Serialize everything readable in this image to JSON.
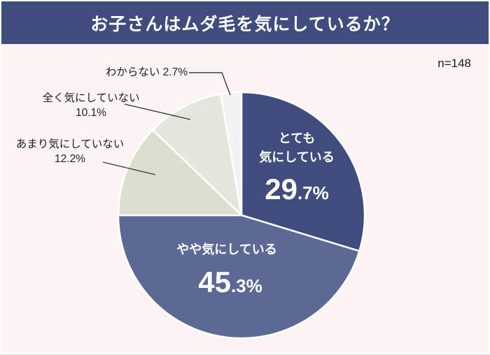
{
  "header": {
    "title": "お子さんはムダ毛を気にしているか？"
  },
  "sample_label": "n=148",
  "colors": {
    "header_bg": "#3e4d7e",
    "background": "#fbf4f2",
    "title_text": "#ffffff",
    "outside_label_text": "#1f1f1f",
    "inside_label_text": "#ffffff",
    "leader_line": "#3a3a3a"
  },
  "chart_data": {
    "type": "pie",
    "title": "お子さんはムダ毛を気にしているか？",
    "n": 148,
    "start_angle_deg": 0,
    "direction": "clockwise",
    "legend_position": "none",
    "segments": [
      {
        "label": "とても気にしている",
        "label_lines": [
          "とても",
          "気にしている"
        ],
        "value": 29.7,
        "color": "#3e4d7e",
        "label_position": "inside"
      },
      {
        "label": "やや気にしている",
        "label_lines": [
          "やや気にしている"
        ],
        "value": 45.3,
        "color": "#5b6994",
        "label_position": "inside"
      },
      {
        "label": "あまり気にしていない",
        "label_lines": [
          "あまり気にしていない"
        ],
        "value": 12.2,
        "color": "#dcded0",
        "label_position": "outside"
      },
      {
        "label": "全く気にしていない",
        "label_lines": [
          "全く気にしていない"
        ],
        "value": 10.1,
        "color": "#e5e6dc",
        "label_position": "outside"
      },
      {
        "label": "わからない",
        "label_lines": [
          "わからない"
        ],
        "value": 2.7,
        "color": "#f2f2f2",
        "label_position": "outside"
      }
    ]
  }
}
